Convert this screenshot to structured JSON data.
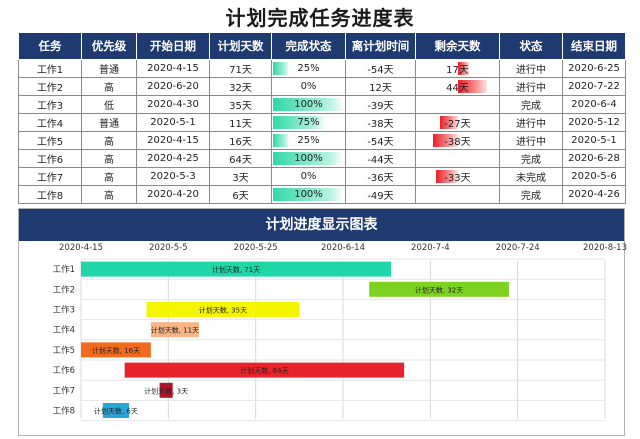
{
  "title": "计划完成任务进度表",
  "table": {
    "headers": [
      "任务",
      "优先级",
      "开始日期",
      "计划天数",
      "完成状态",
      "离计划时间",
      "剩余天数",
      "状态",
      "结束日期"
    ],
    "rows": [
      {
        "task": "工作1",
        "priority": "普通",
        "start": "2020-4-15",
        "plan": "71天",
        "done": "25%",
        "done_frac": 0.25,
        "offset": "-54天",
        "remain": "17天",
        "remain_days": 17,
        "status": "进行中",
        "end": "2020-6-25"
      },
      {
        "task": "工作2",
        "priority": "高",
        "start": "2020-6-20",
        "plan": "32天",
        "done": "0%",
        "done_frac": 0,
        "offset": "12天",
        "remain": "44天",
        "remain_days": 44,
        "status": "进行中",
        "end": "2020-7-22"
      },
      {
        "task": "工作3",
        "priority": "低",
        "start": "2020-4-30",
        "plan": "35天",
        "done": "100%",
        "done_frac": 1,
        "offset": "-39天",
        "remain": "",
        "remain_days": 0,
        "status": "完成",
        "end": "2020-6-4"
      },
      {
        "task": "工作4",
        "priority": "普通",
        "start": "2020-5-1",
        "plan": "11天",
        "done": "75%",
        "done_frac": 0.75,
        "offset": "-38天",
        "remain": "-27天",
        "remain_days": -27,
        "status": "进行中",
        "end": "2020-5-12"
      },
      {
        "task": "工作5",
        "priority": "高",
        "start": "2020-4-15",
        "plan": "16天",
        "done": "25%",
        "done_frac": 0.25,
        "offset": "-54天",
        "remain": "-38天",
        "remain_days": -38,
        "status": "进行中",
        "end": "2020-5-1"
      },
      {
        "task": "工作6",
        "priority": "高",
        "start": "2020-4-25",
        "plan": "64天",
        "done": "100%",
        "done_frac": 1,
        "offset": "-44天",
        "remain": "",
        "remain_days": 0,
        "status": "完成",
        "end": "2020-6-28"
      },
      {
        "task": "工作7",
        "priority": "高",
        "start": "2020-5-3",
        "plan": "3天",
        "done": "0%",
        "done_frac": 0,
        "offset": "-36天",
        "remain": "-33天",
        "remain_days": -33,
        "status": "未完成",
        "end": "2020-5-6"
      },
      {
        "task": "工作8",
        "priority": "高",
        "start": "2020-4-20",
        "plan": "6天",
        "done": "100%",
        "done_frac": 1,
        "offset": "-49天",
        "remain": "",
        "remain_days": 0,
        "status": "完成",
        "end": "2020-4-26"
      }
    ]
  },
  "chart_data": {
    "type": "bar",
    "title": "计划进度显示图表",
    "orientation": "horizontal-gantt",
    "x_ticks": [
      "2020-4-15",
      "2020-5-5",
      "2020-5-25",
      "2020-6-14",
      "2020-7-4",
      "2020-7-24",
      "2020-8-13"
    ],
    "xlim": [
      "2020-4-15",
      "2020-8-13"
    ],
    "categories": [
      "工作1",
      "工作2",
      "工作3",
      "工作4",
      "工作5",
      "工作6",
      "工作7",
      "工作8"
    ],
    "series_name": "计划天数",
    "bars": [
      {
        "task": "工作1",
        "start": "2020-4-15",
        "days": 71,
        "label": "计划天数, 71天",
        "color": "#1fd6a6"
      },
      {
        "task": "工作2",
        "start": "2020-6-20",
        "days": 32,
        "label": "计划天数, 32天",
        "color": "#7ed321"
      },
      {
        "task": "工作3",
        "start": "2020-4-30",
        "days": 35,
        "label": "计划天数, 35天",
        "color": "#f5f500"
      },
      {
        "task": "工作4",
        "start": "2020-5-1",
        "days": 11,
        "label": "计划天数, 11天",
        "color": "#f7b487"
      },
      {
        "task": "工作5",
        "start": "2020-4-15",
        "days": 16,
        "label": "计划天数, 16天",
        "color": "#f26b1d"
      },
      {
        "task": "工作6",
        "start": "2020-4-25",
        "days": 64,
        "label": "计划天数, 64天",
        "color": "#e8232c"
      },
      {
        "task": "工作7",
        "start": "2020-5-3",
        "days": 3,
        "label": "计划天数, 3天",
        "color": "#b0162a"
      },
      {
        "task": "工作8",
        "start": "2020-4-20",
        "days": 6,
        "label": "计划天数, 6天",
        "color": "#29a6d8"
      }
    ],
    "grid": true
  }
}
